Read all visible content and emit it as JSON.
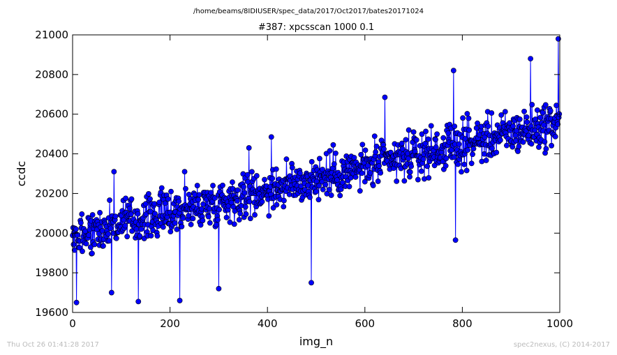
{
  "page": {
    "suptitle": "/home/beams/8IDIUSER/spec_data/2017/Oct2017/bates20171024",
    "footer_left": "Thu Oct 26 01:41:28 2017",
    "footer_right": "spec2nexus, (C) 2014-2017"
  },
  "chart_data": {
    "type": "line",
    "title": "#387: xpcsscan 1000 0.1",
    "xlabel": "img_n",
    "ylabel": "ccdc",
    "xlim": [
      0,
      1000
    ],
    "ylim": [
      19600,
      21000
    ],
    "xticks": [
      0,
      200,
      400,
      600,
      800,
      1000
    ],
    "yticks": [
      19600,
      19800,
      20000,
      20200,
      20400,
      20600,
      20800,
      21000
    ],
    "marker": "circle",
    "color": "#0000ff",
    "trend": {
      "x_start": 0,
      "y_start": 19990,
      "x_end": 1000,
      "y_end": 20560
    },
    "noise_amplitude": 150,
    "n_points": 1000,
    "extremes": [
      {
        "x": 8,
        "y": 19650
      },
      {
        "x": 80,
        "y": 19700
      },
      {
        "x": 85,
        "y": 20310
      },
      {
        "x": 135,
        "y": 19655
      },
      {
        "x": 220,
        "y": 19660
      },
      {
        "x": 230,
        "y": 20310
      },
      {
        "x": 300,
        "y": 19720
      },
      {
        "x": 362,
        "y": 20430
      },
      {
        "x": 408,
        "y": 20485
      },
      {
        "x": 490,
        "y": 19750
      },
      {
        "x": 641,
        "y": 20685
      },
      {
        "x": 782,
        "y": 20820
      },
      {
        "x": 786,
        "y": 19965
      },
      {
        "x": 940,
        "y": 20880
      },
      {
        "x": 997,
        "y": 20980
      }
    ]
  }
}
